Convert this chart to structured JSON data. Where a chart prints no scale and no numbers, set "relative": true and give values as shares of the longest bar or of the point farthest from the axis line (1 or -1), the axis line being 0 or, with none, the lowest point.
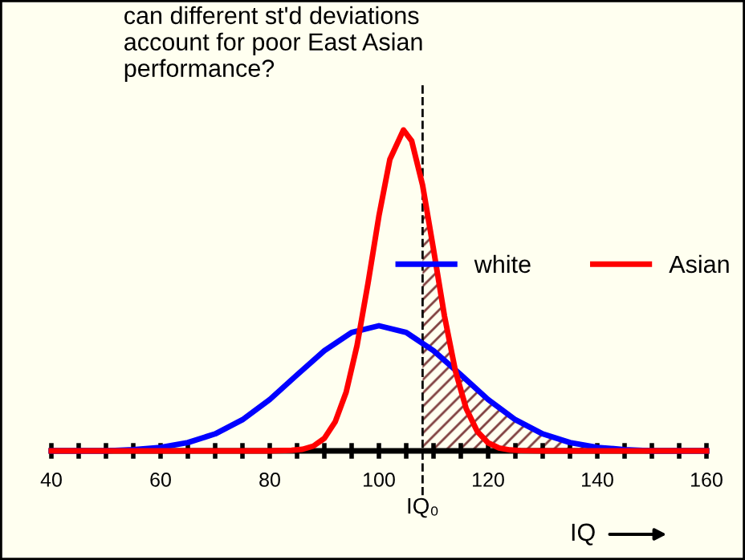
{
  "chart_data": {
    "type": "line",
    "title": "can different st'd deviations\naccount for poor East Asian\nperformance?",
    "xlabel": "IQ",
    "relative": true,
    "xlim": [
      40,
      160
    ],
    "xticks": [
      40,
      {
        "value": 45,
        "label": null
      },
      {
        "value": 50,
        "label": null
      },
      {
        "value": 55,
        "label": null
      },
      60,
      {
        "value": 65,
        "label": null
      },
      {
        "value": 70,
        "label": null
      },
      {
        "value": 75,
        "label": null
      },
      80,
      {
        "value": 85,
        "label": null
      },
      {
        "value": 90,
        "label": null
      },
      {
        "value": 95,
        "label": null
      },
      100,
      {
        "value": 105,
        "label": null
      },
      {
        "value": 110,
        "label": null
      },
      {
        "value": 115,
        "label": null
      },
      120,
      {
        "value": 125,
        "label": null
      },
      {
        "value": 130,
        "label": null
      },
      {
        "value": 135,
        "label": null
      },
      140,
      {
        "value": 145,
        "label": null
      },
      {
        "value": 150,
        "label": null
      },
      {
        "value": 155,
        "label": null
      },
      160
    ],
    "series": [
      {
        "name": "white",
        "color": "#0000ff",
        "x": [
          40,
          45,
          50,
          55,
          60,
          65,
          70,
          75,
          80,
          85,
          90,
          95,
          100,
          105,
          110,
          115,
          120,
          125,
          130,
          135,
          140,
          145,
          150,
          155,
          160
        ],
        "values": [
          0,
          0,
          0,
          0.004,
          0.011,
          0.026,
          0.053,
          0.097,
          0.16,
          0.237,
          0.312,
          0.369,
          0.39,
          0.369,
          0.312,
          0.237,
          0.16,
          0.097,
          0.053,
          0.026,
          0.011,
          0.004,
          0,
          0,
          0
        ]
      },
      {
        "name": "Asian",
        "color": "#ff0000",
        "x": [
          40,
          80,
          84,
          86,
          88,
          90,
          92,
          94,
          96,
          98,
          100,
          102,
          104.5,
          106,
          108,
          110,
          112,
          114,
          116,
          118,
          120,
          122,
          124,
          126,
          130,
          160
        ],
        "values": [
          0,
          0,
          0.002,
          0.005,
          0.015,
          0.039,
          0.091,
          0.183,
          0.329,
          0.522,
          0.732,
          0.908,
          1,
          0.966,
          0.828,
          0.628,
          0.421,
          0.25,
          0.131,
          0.061,
          0.025,
          0.009,
          0.003,
          0.001,
          0,
          0
        ]
      }
    ],
    "ref_lines": [
      {
        "axis": "x",
        "value": 108,
        "label": "IQ₀",
        "color": "#000000",
        "line_style": "dashed"
      }
    ],
    "legend": "right",
    "grid": false,
    "marker": "none",
    "line_style": "solid"
  }
}
